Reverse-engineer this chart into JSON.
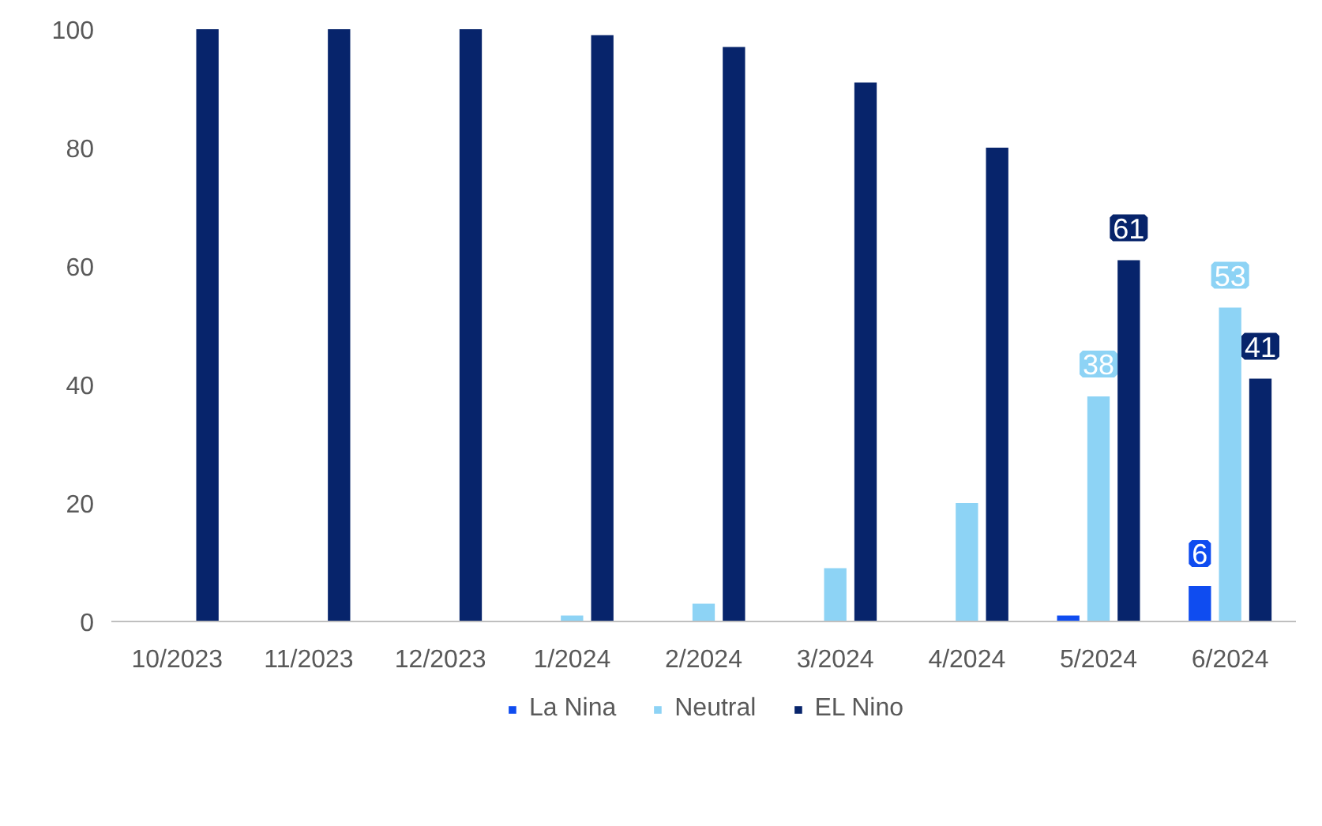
{
  "chart_data": {
    "type": "bar",
    "categories": [
      "10/2023",
      "11/2023",
      "12/2023",
      "1/2024",
      "2/2024",
      "3/2024",
      "4/2024",
      "5/2024",
      "6/2024"
    ],
    "series": [
      {
        "name": "La Nina",
        "color": "#0f4cf0",
        "values": [
          0,
          0,
          0,
          0,
          0,
          0,
          0,
          1,
          6
        ],
        "value_labels": [
          null,
          null,
          null,
          null,
          null,
          null,
          null,
          null,
          "6"
        ]
      },
      {
        "name": "Neutral",
        "color": "#8dd3f5",
        "values": [
          0,
          0,
          0,
          1,
          3,
          9,
          20,
          38,
          53
        ],
        "value_labels": [
          null,
          null,
          null,
          null,
          null,
          null,
          null,
          "38",
          "53"
        ]
      },
      {
        "name": "EL Nino",
        "color": "#07246b",
        "values": [
          100,
          100,
          100,
          99,
          97,
          91,
          80,
          61,
          41
        ],
        "value_labels": [
          null,
          null,
          null,
          null,
          null,
          null,
          null,
          "61",
          "41"
        ]
      }
    ],
    "ylim": [
      0,
      100
    ],
    "yticks": [
      0,
      20,
      40,
      60,
      80,
      100
    ],
    "grid": false,
    "legend": "bottom"
  }
}
